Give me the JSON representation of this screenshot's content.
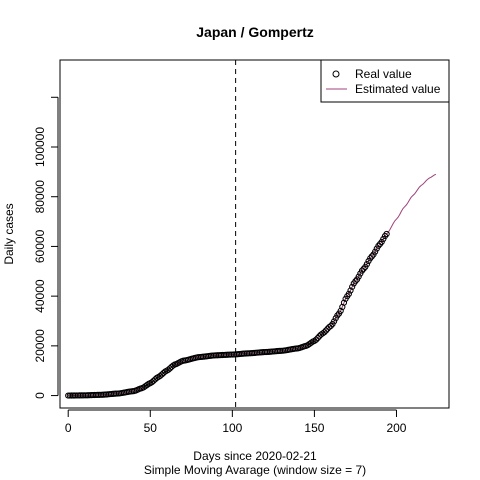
{
  "chart_data": {
    "type": "scatter",
    "title": "Japan / Gompertz",
    "xlabel": "Days since 2020-02-21",
    "subtitle": "Simple Moving Avarage (window size = 7)",
    "ylabel": "Daily cases",
    "xlim": [
      -5,
      232
    ],
    "ylim": [
      -5000,
      135000
    ],
    "x_ticks": [
      0,
      50,
      100,
      150,
      200
    ],
    "x_tick_labels": [
      "0",
      "50",
      "100",
      "150",
      "200"
    ],
    "y_ticks": [
      0,
      20000,
      40000,
      60000,
      80000,
      100000,
      120000
    ],
    "y_tick_labels": [
      "0",
      "20000",
      "40000",
      "60000",
      "80000",
      "100000",
      ""
    ],
    "vline_x": 102,
    "legend": {
      "position": "top-right",
      "entries": [
        {
          "label": "Real value",
          "marker": "open-circle",
          "color": "#000000"
        },
        {
          "label": "Estimated value",
          "marker": "line",
          "color": "#a0407a"
        }
      ]
    },
    "series": [
      {
        "name": "Real value",
        "kind": "points",
        "color": "#000000",
        "x_range": [
          0,
          194
        ],
        "y_knots": [
          [
            0,
            0
          ],
          [
            10,
            100
          ],
          [
            20,
            300
          ],
          [
            30,
            800
          ],
          [
            40,
            1800
          ],
          [
            45,
            3000
          ],
          [
            50,
            5000
          ],
          [
            55,
            7500
          ],
          [
            60,
            10000
          ],
          [
            65,
            12500
          ],
          [
            70,
            14000
          ],
          [
            80,
            15500
          ],
          [
            90,
            16200
          ],
          [
            100,
            16500
          ],
          [
            110,
            17000
          ],
          [
            120,
            17500
          ],
          [
            130,
            18000
          ],
          [
            140,
            19000
          ],
          [
            145,
            20000
          ],
          [
            150,
            22000
          ],
          [
            155,
            25000
          ],
          [
            160,
            28000
          ],
          [
            165,
            33000
          ],
          [
            170,
            40000
          ],
          [
            175,
            46000
          ],
          [
            180,
            51000
          ],
          [
            185,
            56000
          ],
          [
            190,
            61000
          ],
          [
            194,
            65000
          ]
        ]
      },
      {
        "name": "Estimated value",
        "kind": "line",
        "color": "#a0407a",
        "x_range": [
          0,
          224
        ],
        "y_knots": [
          [
            0,
            0
          ],
          [
            10,
            100
          ],
          [
            20,
            300
          ],
          [
            30,
            800
          ],
          [
            40,
            1800
          ],
          [
            45,
            3000
          ],
          [
            50,
            5000
          ],
          [
            55,
            7500
          ],
          [
            60,
            10000
          ],
          [
            65,
            12500
          ],
          [
            70,
            14000
          ],
          [
            80,
            15500
          ],
          [
            90,
            16200
          ],
          [
            100,
            16500
          ],
          [
            110,
            17000
          ],
          [
            120,
            17500
          ],
          [
            130,
            18000
          ],
          [
            140,
            19000
          ],
          [
            145,
            20000
          ],
          [
            150,
            22000
          ],
          [
            155,
            25000
          ],
          [
            160,
            28000
          ],
          [
            165,
            33000
          ],
          [
            170,
            40000
          ],
          [
            175,
            46000
          ],
          [
            180,
            51000
          ],
          [
            185,
            56000
          ],
          [
            190,
            61000
          ],
          [
            194,
            65000
          ],
          [
            200,
            71000
          ],
          [
            205,
            76000
          ],
          [
            210,
            80500
          ],
          [
            215,
            84500
          ],
          [
            220,
            87500
          ],
          [
            224,
            89000
          ]
        ]
      }
    ]
  }
}
